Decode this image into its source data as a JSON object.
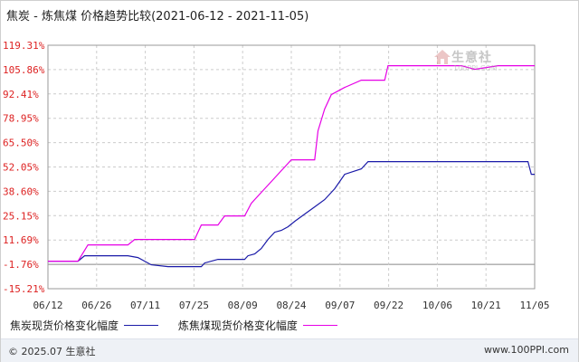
{
  "chart_data": {
    "type": "line",
    "title": "焦炭 - 炼焦煤 价格趋势比较(2021-06-12 - 2021-11-05)",
    "x_categories": [
      "06/12",
      "06/26",
      "07/11",
      "07/25",
      "08/09",
      "08/24",
      "09/07",
      "09/22",
      "10/06",
      "10/21",
      "11/05"
    ],
    "y_ticks": [
      "119.31%",
      "105.86%",
      "92.41%",
      "78.95%",
      "65.50%",
      "52.05%",
      "38.60%",
      "25.15%",
      "11.69%",
      "-1.76%",
      "-15.21%"
    ],
    "ylim": [
      -15.21,
      119.31
    ],
    "grid": true,
    "legend_position": "bottom-left",
    "series": [
      {
        "name": "焦炭现货价格变化幅度",
        "color": "#1a1aa8",
        "points": [
          [
            "2021-06-12",
            0.0
          ],
          [
            "2021-06-21",
            0.0
          ],
          [
            "2021-06-23",
            3.0
          ],
          [
            "2021-07-06",
            3.0
          ],
          [
            "2021-07-09",
            2.0
          ],
          [
            "2021-07-13",
            -2.0
          ],
          [
            "2021-07-18",
            -3.0
          ],
          [
            "2021-07-28",
            -3.0
          ],
          [
            "2021-07-29",
            -1.0
          ],
          [
            "2021-08-02",
            1.0
          ],
          [
            "2021-08-10",
            1.0
          ],
          [
            "2021-08-11",
            3.0
          ],
          [
            "2021-08-13",
            4.0
          ],
          [
            "2021-08-15",
            7.0
          ],
          [
            "2021-08-17",
            12.0
          ],
          [
            "2021-08-19",
            16.0
          ],
          [
            "2021-08-21",
            17.0
          ],
          [
            "2021-08-23",
            19.0
          ],
          [
            "2021-08-25",
            22.0
          ],
          [
            "2021-08-28",
            26.0
          ],
          [
            "2021-08-31",
            30.0
          ],
          [
            "2021-09-03",
            34.0
          ],
          [
            "2021-09-06",
            40.0
          ],
          [
            "2021-09-09",
            48.0
          ],
          [
            "2021-09-14",
            51.0
          ],
          [
            "2021-09-16",
            55.0
          ],
          [
            "2021-11-03",
            55.0
          ],
          [
            "2021-11-04",
            48.0
          ],
          [
            "2021-11-05",
            48.0
          ]
        ]
      },
      {
        "name": "炼焦煤现货价格变化幅度",
        "color": "#e600e6",
        "points": [
          [
            "2021-06-12",
            0.0
          ],
          [
            "2021-06-21",
            0.0
          ],
          [
            "2021-06-24",
            9.0
          ],
          [
            "2021-07-06",
            9.0
          ],
          [
            "2021-07-08",
            12.0
          ],
          [
            "2021-07-26",
            12.0
          ],
          [
            "2021-07-28",
            20.0
          ],
          [
            "2021-08-02",
            20.0
          ],
          [
            "2021-08-04",
            25.0
          ],
          [
            "2021-08-10",
            25.0
          ],
          [
            "2021-08-12",
            32.0
          ],
          [
            "2021-08-15",
            38.0
          ],
          [
            "2021-08-18",
            44.0
          ],
          [
            "2021-08-21",
            50.0
          ],
          [
            "2021-08-24",
            56.0
          ],
          [
            "2021-08-31",
            56.0
          ],
          [
            "2021-09-01",
            72.0
          ],
          [
            "2021-09-03",
            84.0
          ],
          [
            "2021-09-05",
            92.0
          ],
          [
            "2021-09-09",
            96.0
          ],
          [
            "2021-09-14",
            100.0
          ],
          [
            "2021-09-21",
            100.0
          ],
          [
            "2021-09-22",
            108.0
          ],
          [
            "2021-10-14",
            108.0
          ],
          [
            "2021-10-18",
            106.0
          ],
          [
            "2021-10-25",
            108.0
          ],
          [
            "2021-11-05",
            108.0
          ]
        ]
      }
    ]
  },
  "watermark": {
    "logo_text": "生意社",
    "url_text": "100PPI.COM"
  },
  "footer": {
    "copyright": "© 2025.07 生意社",
    "site": "www.100PPI.com"
  }
}
